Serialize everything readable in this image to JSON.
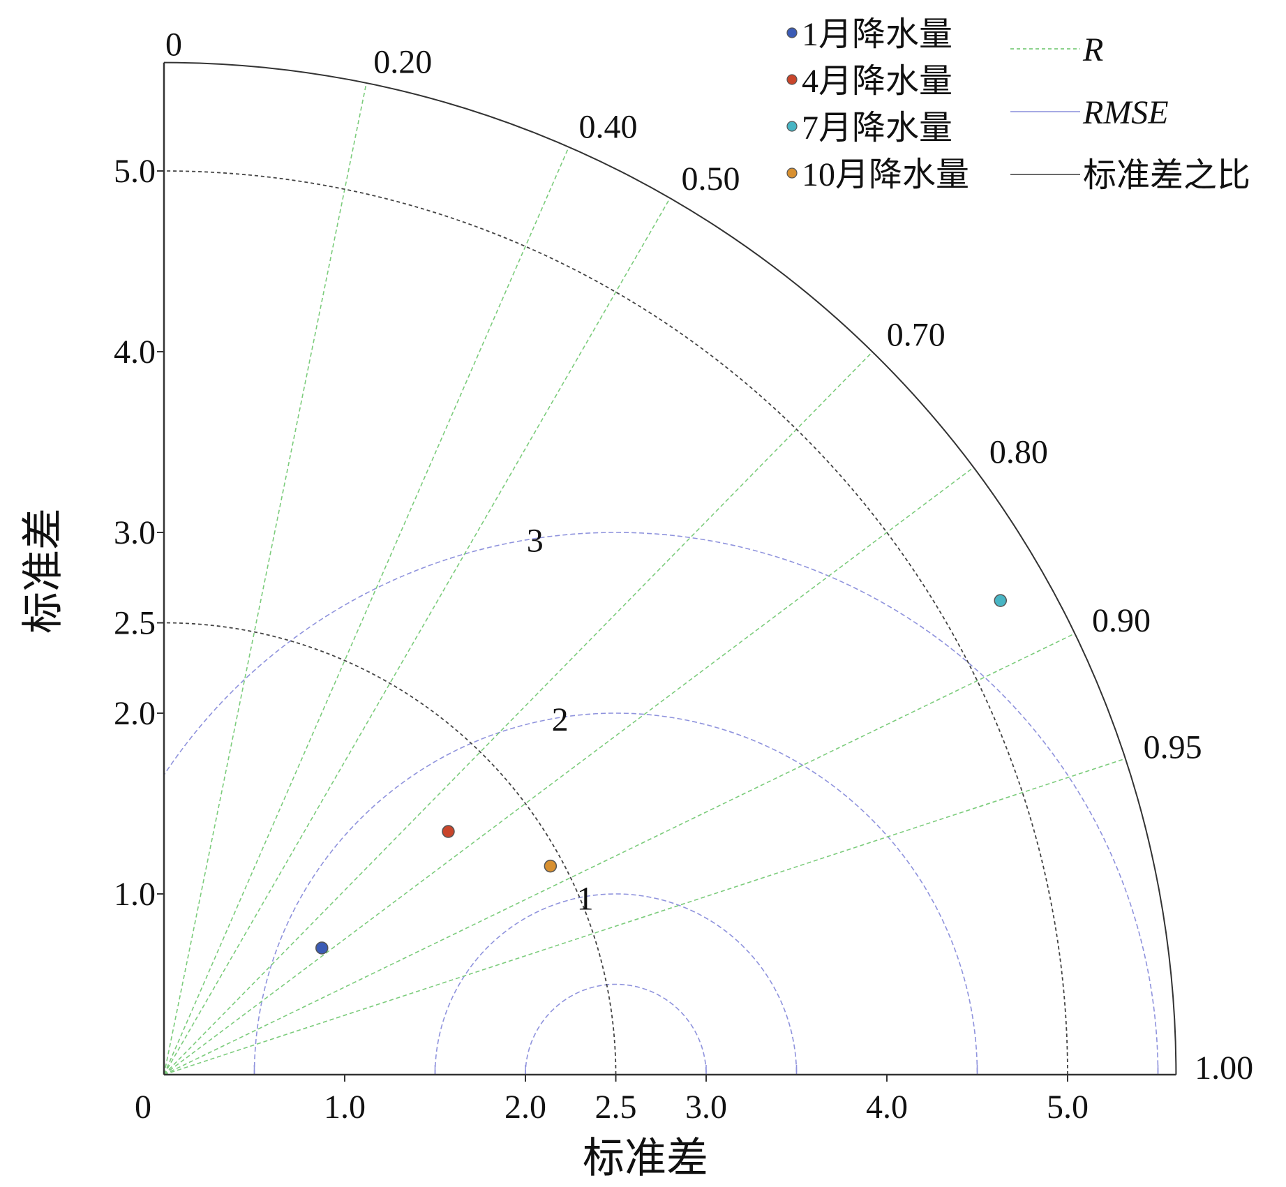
{
  "chart_data": {
    "type": "taylor",
    "xlabel": "标准差",
    "ylabel": "标准差",
    "std_ticks": [
      "1.0",
      "2.0",
      "2.5",
      "3.0",
      "4.0",
      "5.0"
    ],
    "std_ticks_values": [
      1.0,
      2.0,
      2.5,
      3.0,
      4.0,
      5.0
    ],
    "origin_x_label": "0",
    "origin_y_label": "0",
    "corr_ticks": [
      {
        "label": "0.20",
        "value": 0.2
      },
      {
        "label": "0.40",
        "value": 0.4
      },
      {
        "label": "0.50",
        "value": 0.5
      },
      {
        "label": "0.70",
        "value": 0.7
      },
      {
        "label": "0.80",
        "value": 0.8
      },
      {
        "label": "0.90",
        "value": 0.9
      },
      {
        "label": "0.95",
        "value": 0.95
      },
      {
        "label": "1.00",
        "value": 1.0
      }
    ],
    "std_max": 5.6,
    "std_arcs": [
      2.5,
      5.0
    ],
    "reference_std": 2.5,
    "rmse_arcs": [
      {
        "value": 0.5,
        "label": ""
      },
      {
        "value": 1.0,
        "label": "1"
      },
      {
        "value": 2.0,
        "label": "2"
      },
      {
        "value": 3.0,
        "label": "3"
      }
    ],
    "series": [
      {
        "name": "1月降水量",
        "std": 1.12,
        "corr": 0.78,
        "color": "#3b5bb5"
      },
      {
        "name": "4月降水量",
        "std": 2.07,
        "corr": 0.76,
        "color": "#c9452b"
      },
      {
        "name": "7月降水量",
        "std": 5.32,
        "corr": 0.87,
        "color": "#48b5c4"
      },
      {
        "name": "10月降水量",
        "std": 2.43,
        "corr": 0.88,
        "color": "#d89030"
      }
    ],
    "legend": {
      "placement": "top-right",
      "lines": [
        {
          "name": "R",
          "color": "#7ccc7c",
          "style": "dashed"
        },
        {
          "name": "RMSE",
          "color": "#9a9ee0",
          "style": "solid"
        },
        {
          "name": "标准差之比",
          "color": "#555555",
          "style": "solid"
        }
      ]
    },
    "colors": {
      "axis": "#333333",
      "r_lines": "#7ccc7c",
      "rmse": "#8f93dd",
      "std_arc": "#444444"
    }
  }
}
